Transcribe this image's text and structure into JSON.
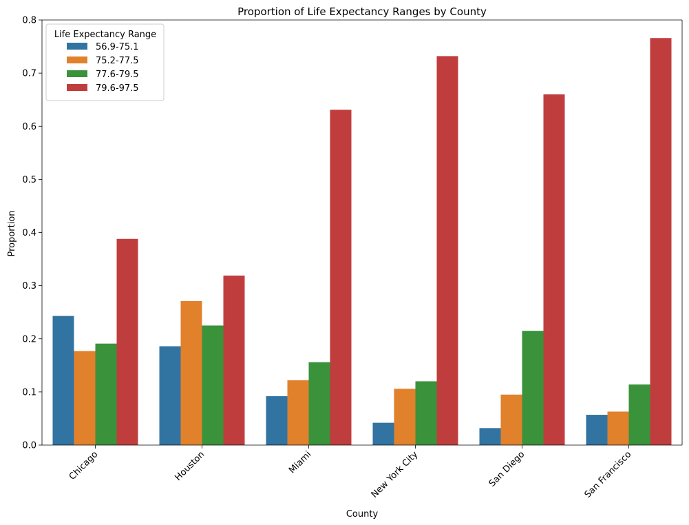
{
  "chart_data": {
    "type": "bar",
    "title": "Proportion of Life Expectancy Ranges by County",
    "xlabel": "County",
    "ylabel": "Proportion",
    "categories": [
      "Chicago",
      "Houston",
      "Miami",
      "New York City",
      "San Diego",
      "San Francisco"
    ],
    "ylim": [
      0,
      0.8
    ],
    "yticks": [
      0.0,
      0.1,
      0.2,
      0.3,
      0.4,
      0.5,
      0.6,
      0.7,
      0.8
    ],
    "ytick_labels": [
      "0.0",
      "0.1",
      "0.2",
      "0.3",
      "0.4",
      "0.5",
      "0.6",
      "0.7",
      "0.8"
    ],
    "grid": false,
    "legend": {
      "title": "Life Expectancy Range",
      "placement": "top-left"
    },
    "series": [
      {
        "name": "56.9-75.1",
        "color": "#3274a1",
        "values": [
          0.243,
          0.186,
          0.092,
          0.042,
          0.032,
          0.057
        ]
      },
      {
        "name": "75.2-77.5",
        "color": "#e1812c",
        "values": [
          0.177,
          0.271,
          0.122,
          0.106,
          0.095,
          0.063
        ]
      },
      {
        "name": "77.6-79.5",
        "color": "#3a923a",
        "values": [
          0.191,
          0.225,
          0.156,
          0.12,
          0.215,
          0.114
        ]
      },
      {
        "name": "79.6-97.5",
        "color": "#c03d3e",
        "values": [
          0.388,
          0.319,
          0.631,
          0.732,
          0.66,
          0.766
        ]
      }
    ]
  }
}
